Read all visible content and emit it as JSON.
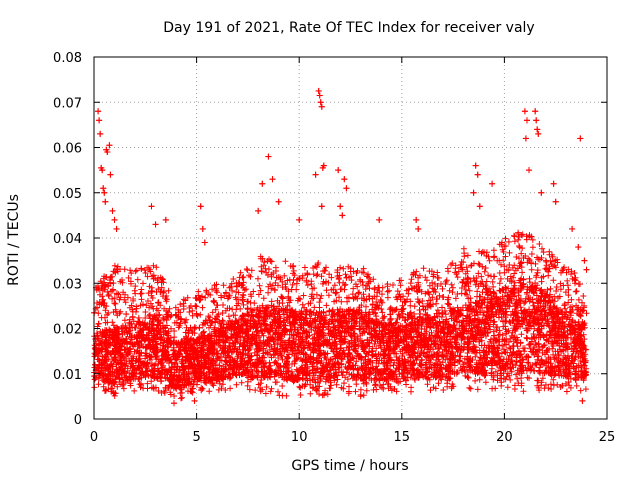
{
  "chart_data": {
    "type": "scatter",
    "title": "Day 191 of 2021, Rate Of TEC Index for receiver valy",
    "xlabel": "GPS time / hours",
    "ylabel": "ROTI / TECUs",
    "xlim": [
      0,
      25
    ],
    "ylim": [
      0,
      0.08
    ],
    "x_ticks": [
      0,
      5,
      10,
      15,
      20,
      25
    ],
    "x_tick_labels": [
      "0",
      "5",
      "10",
      "15",
      "20",
      "25"
    ],
    "y_ticks": [
      0,
      0.01,
      0.02,
      0.03,
      0.04,
      0.05,
      0.06,
      0.07,
      0.08
    ],
    "y_tick_labels": [
      "0",
      "0.01",
      "0.02",
      "0.03",
      "0.04",
      "0.05",
      "0.06",
      "0.07",
      "0.08"
    ],
    "grid": true,
    "marker": "+",
    "marker_color": "#ff0000",
    "data_range_x": [
      0,
      24
    ],
    "series": [
      {
        "name": "ROTI",
        "points": [
          [
            0.2,
            0.068
          ],
          [
            0.25,
            0.066
          ],
          [
            0.3,
            0.063
          ],
          [
            0.35,
            0.0555
          ],
          [
            0.4,
            0.055
          ],
          [
            0.45,
            0.051
          ],
          [
            0.5,
            0.05
          ],
          [
            0.55,
            0.048
          ],
          [
            0.6,
            0.0595
          ],
          [
            0.65,
            0.059
          ],
          [
            0.75,
            0.0605
          ],
          [
            0.8,
            0.054
          ],
          [
            0.9,
            0.046
          ],
          [
            1.0,
            0.044
          ],
          [
            1.1,
            0.042
          ],
          [
            2.8,
            0.047
          ],
          [
            3.0,
            0.043
          ],
          [
            3.5,
            0.044
          ],
          [
            5.2,
            0.047
          ],
          [
            5.3,
            0.042
          ],
          [
            5.4,
            0.039
          ],
          [
            8.5,
            0.058
          ],
          [
            8.2,
            0.052
          ],
          [
            8.0,
            0.046
          ],
          [
            8.7,
            0.053
          ],
          [
            9.0,
            0.048
          ],
          [
            10.0,
            0.044
          ],
          [
            10.8,
            0.054
          ],
          [
            10.95,
            0.0725
          ],
          [
            11.0,
            0.0715
          ],
          [
            11.05,
            0.07
          ],
          [
            11.1,
            0.069
          ],
          [
            11.15,
            0.0555
          ],
          [
            11.2,
            0.056
          ],
          [
            11.1,
            0.047
          ],
          [
            11.9,
            0.055
          ],
          [
            12.2,
            0.053
          ],
          [
            12.3,
            0.051
          ],
          [
            12.0,
            0.047
          ],
          [
            12.1,
            0.045
          ],
          [
            13.9,
            0.044
          ],
          [
            15.7,
            0.044
          ],
          [
            15.8,
            0.042
          ],
          [
            18.6,
            0.056
          ],
          [
            18.7,
            0.054
          ],
          [
            18.5,
            0.05
          ],
          [
            18.8,
            0.047
          ],
          [
            19.4,
            0.052
          ],
          [
            21.0,
            0.068
          ],
          [
            21.1,
            0.066
          ],
          [
            21.05,
            0.062
          ],
          [
            21.5,
            0.068
          ],
          [
            21.55,
            0.066
          ],
          [
            21.6,
            0.064
          ],
          [
            21.65,
            0.063
          ],
          [
            21.2,
            0.055
          ],
          [
            21.8,
            0.05
          ],
          [
            22.4,
            0.052
          ],
          [
            22.5,
            0.048
          ],
          [
            23.7,
            0.062
          ],
          [
            23.3,
            0.042
          ],
          [
            23.6,
            0.038
          ],
          [
            23.9,
            0.035
          ],
          [
            24.0,
            0.033
          ],
          [
            0.1,
            0.029
          ],
          [
            0.05,
            0.012
          ],
          [
            3.9,
            0.0035
          ],
          [
            4.9,
            0.004
          ],
          [
            23.8,
            0.004
          ]
        ]
      }
    ],
    "density_profile": {
      "description": "hourly envelope of the dense ROTI band (hour, lower, central, upper)",
      "rows": [
        [
          0,
          0.007,
          0.014,
          0.03
        ],
        [
          1,
          0.005,
          0.014,
          0.034
        ],
        [
          2,
          0.006,
          0.015,
          0.033
        ],
        [
          3,
          0.006,
          0.016,
          0.034
        ],
        [
          4,
          0.004,
          0.012,
          0.026
        ],
        [
          5,
          0.006,
          0.013,
          0.028
        ],
        [
          6,
          0.006,
          0.014,
          0.03
        ],
        [
          7,
          0.007,
          0.016,
          0.032
        ],
        [
          8,
          0.006,
          0.017,
          0.036
        ],
        [
          9,
          0.005,
          0.017,
          0.036
        ],
        [
          10,
          0.005,
          0.016,
          0.033
        ],
        [
          11,
          0.005,
          0.016,
          0.035
        ],
        [
          12,
          0.006,
          0.017,
          0.034
        ],
        [
          13,
          0.005,
          0.016,
          0.034
        ],
        [
          14,
          0.006,
          0.015,
          0.031
        ],
        [
          15,
          0.006,
          0.015,
          0.031
        ],
        [
          16,
          0.006,
          0.016,
          0.034
        ],
        [
          17,
          0.006,
          0.016,
          0.032
        ],
        [
          18,
          0.007,
          0.018,
          0.038
        ],
        [
          19,
          0.006,
          0.018,
          0.037
        ],
        [
          20,
          0.007,
          0.02,
          0.04
        ],
        [
          21,
          0.006,
          0.021,
          0.042
        ],
        [
          22,
          0.006,
          0.019,
          0.038
        ],
        [
          23,
          0.006,
          0.016,
          0.034
        ],
        [
          24,
          0.006,
          0.014,
          0.03
        ]
      ]
    }
  }
}
